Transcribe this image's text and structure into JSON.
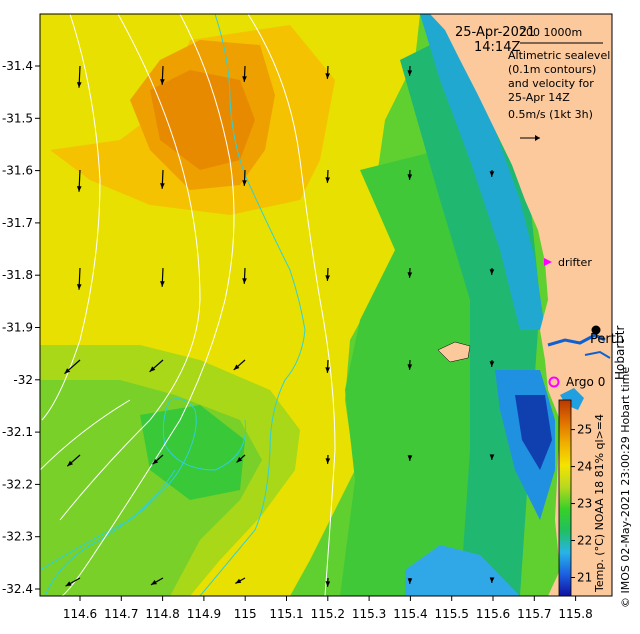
{
  "header": {
    "date": "25-Apr-2021",
    "time": "14:14Z",
    "scale_label": "200  1000m"
  },
  "note": {
    "lines": [
      "Altimetric sealevel",
      "(0.1m contours)",
      "and velocity for",
      "25-Apr 14Z",
      "0.5m/s (1kt 3h)"
    ]
  },
  "places": {
    "drifter": "drifter",
    "perth": "Perth",
    "hobart": "Hobart tr",
    "argo": "Argo 0"
  },
  "axes": {
    "x_ticks": [
      "114.6",
      "114.7",
      "114.8",
      "114.9",
      "115",
      "115.1",
      "115.2",
      "115.3",
      "115.4",
      "115.5",
      "115.6",
      "115.7",
      "115.8"
    ],
    "y_ticks": [
      "-31.4",
      "-31.5",
      "-31.6",
      "-31.7",
      "-31.8",
      "-31.9",
      "-32",
      "-32.1",
      "-32.2",
      "-32.3",
      "-32.4"
    ]
  },
  "colorbar": {
    "ticks": [
      "21",
      "22",
      "23",
      "24",
      "25"
    ],
    "range": [
      20.5,
      25.8
    ],
    "label": "Temp. (°C) NOAA 18 81% ql>=4",
    "stops": [
      "#1010a0",
      "#1c60e0",
      "#28b4e8",
      "#20c060",
      "#38d028",
      "#b8d820",
      "#f4e400",
      "#f0b000",
      "#e07000",
      "#b83800"
    ]
  },
  "credit": "© IMOS 02-May-2021 23:00:29 Hobart time",
  "colors": {
    "land": "#fcc99c",
    "contour": "#ffffff",
    "isobath": "#30d0d8",
    "drifter_marker": "#ff00ff",
    "argo_marker": "#ff00ff"
  }
}
